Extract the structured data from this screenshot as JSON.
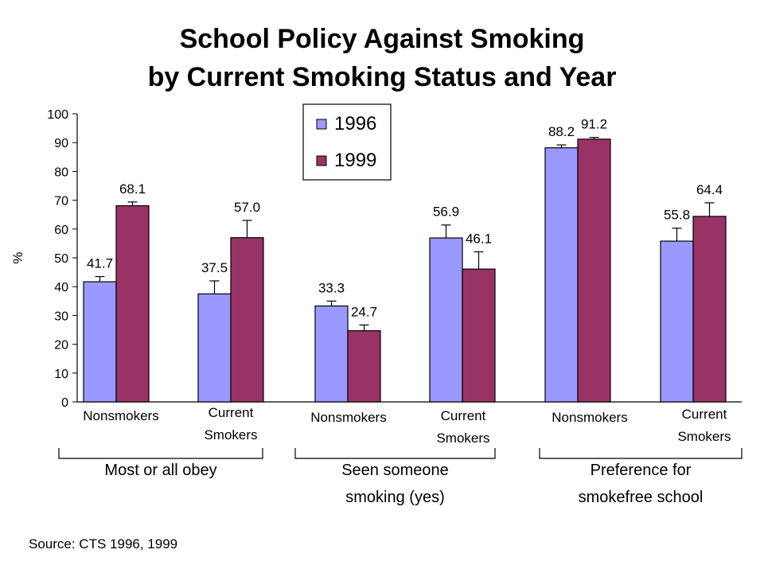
{
  "chart_data": {
    "type": "bar",
    "title_line1": "School Policy Against Smoking",
    "title_line2": "by Current Smoking Status and Year",
    "ylabel": "%",
    "ylim": [
      0,
      100
    ],
    "yticks": [
      "0",
      "10",
      "20",
      "30",
      "40",
      "50",
      "60",
      "70",
      "80",
      "90",
      "100"
    ],
    "groups": [
      {
        "label_lines": [
          "Most or all obey"
        ],
        "categories": [
          {
            "label_lines": [
              "Nonsmokers"
            ],
            "values": [
              41.7,
              68.1
            ],
            "labels": [
              "41.7",
              "68.1"
            ],
            "error": [
              1.8,
              1.3
            ]
          },
          {
            "label_lines": [
              "Current",
              "Smokers"
            ],
            "values": [
              37.5,
              57.0
            ],
            "labels": [
              "37.5",
              "57.0"
            ],
            "error": [
              4.5,
              6.0
            ]
          }
        ]
      },
      {
        "label_lines": [
          "Seen someone",
          "smoking (yes)"
        ],
        "categories": [
          {
            "label_lines": [
              "Nonsmokers"
            ],
            "values": [
              33.3,
              24.7
            ],
            "labels": [
              "33.3",
              "24.7"
            ],
            "error": [
              1.7,
              2.0
            ]
          },
          {
            "label_lines": [
              "Current",
              "Smokers"
            ],
            "values": [
              56.9,
              46.1
            ],
            "labels": [
              "56.9",
              "46.1"
            ],
            "error": [
              4.5,
              6.0
            ]
          }
        ]
      },
      {
        "label_lines": [
          "Preference for",
          "smokefree school"
        ],
        "categories": [
          {
            "label_lines": [
              "Nonsmokers"
            ],
            "values": [
              88.2,
              91.2
            ],
            "labels": [
              "88.2",
              "91.2"
            ],
            "error": [
              1.0,
              0.6
            ]
          },
          {
            "label_lines": [
              "Current",
              "Smokers"
            ],
            "values": [
              55.8,
              64.4
            ],
            "labels": [
              "55.8",
              "64.4"
            ],
            "error": [
              4.5,
              4.7
            ]
          }
        ]
      }
    ],
    "series": [
      {
        "name": "1996",
        "color": "#9999ff"
      },
      {
        "name": "1999",
        "color": "#993366"
      }
    ],
    "legend_position": "top-center",
    "grid": false
  },
  "source": "Source:  CTS 1996, 1999"
}
